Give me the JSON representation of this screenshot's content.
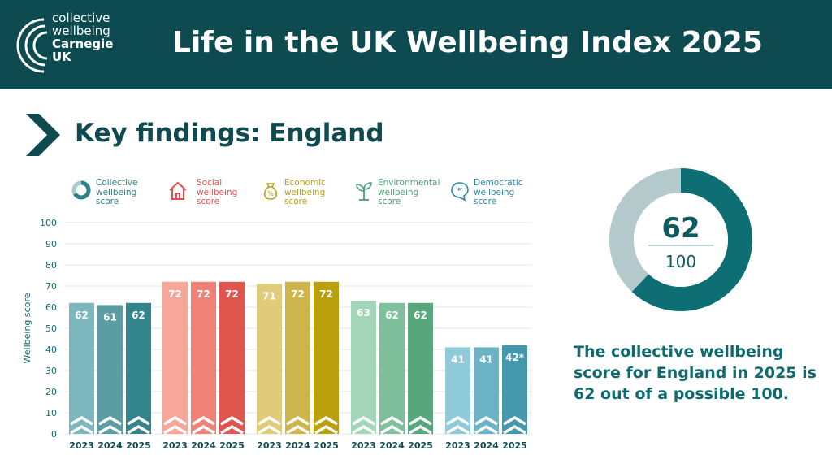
{
  "header": {
    "logo": {
      "line1": "collective",
      "line2": "wellbeing",
      "line3": "Carnegie",
      "line4": "UK"
    },
    "title": "Life in the UK Wellbeing Index 2025"
  },
  "section_title": "Key findings: England",
  "legend": [
    {
      "label": "Collective wellbeing score",
      "lines": [
        "Collective",
        "wellbeing",
        "score"
      ],
      "color": "#2f8089",
      "icon": "donut-icon"
    },
    {
      "label": "Social wellbeing score",
      "lines": [
        "Social",
        "wellbeing",
        "score"
      ],
      "color": "#e0504e",
      "icon": "house-icon"
    },
    {
      "label": "Economic wellbeing score",
      "lines": [
        "Economic",
        "wellbeing",
        "score"
      ],
      "color": "#b7a21a",
      "icon": "money-bag-icon"
    },
    {
      "label": "Environmental wellbeing score",
      "lines": [
        "Environmental",
        "wellbeing",
        "score"
      ],
      "color": "#4aa275",
      "icon": "sprout-icon"
    },
    {
      "label": "Democratic wellbeing score",
      "lines": [
        "Democratic",
        "wellbeing",
        "score"
      ],
      "color": "#2b86a4",
      "icon": "speech-bubble-icon"
    }
  ],
  "chart_data": {
    "type": "bar",
    "title": "",
    "ylabel": "Wellbeing score",
    "ylim": [
      0,
      100
    ],
    "yticks": [
      0,
      10,
      20,
      30,
      40,
      50,
      60,
      70,
      80,
      90,
      100
    ],
    "grid": true,
    "groups": [
      {
        "name": "Collective wellbeing score",
        "categories": [
          "2023",
          "2024",
          "2025"
        ],
        "values": [
          62,
          61,
          62
        ],
        "labels": [
          "62",
          "61",
          "62"
        ],
        "colors": [
          "#7db6bd",
          "#5c9da4",
          "#34848b"
        ]
      },
      {
        "name": "Social wellbeing score",
        "categories": [
          "2023",
          "2024",
          "2025"
        ],
        "values": [
          72,
          72,
          72
        ],
        "labels": [
          "72",
          "72",
          "72"
        ],
        "colors": [
          "#f7a79a",
          "#ef8277",
          "#e1554f"
        ]
      },
      {
        "name": "Economic wellbeing score",
        "categories": [
          "2023",
          "2024",
          "2025"
        ],
        "values": [
          71,
          72,
          72
        ],
        "labels": [
          "71",
          "72",
          "72"
        ],
        "colors": [
          "#e0cb7b",
          "#cdb44b",
          "#b9a00c"
        ]
      },
      {
        "name": "Environmental wellbeing score",
        "categories": [
          "2023",
          "2024",
          "2025"
        ],
        "values": [
          63,
          62,
          62
        ],
        "labels": [
          "63",
          "62",
          "62"
        ],
        "colors": [
          "#a3d6b8",
          "#7fc09c",
          "#58a67b"
        ]
      },
      {
        "name": "Democratic wellbeing score",
        "categories": [
          "2023",
          "2024",
          "2025"
        ],
        "values": [
          41,
          41,
          42
        ],
        "labels": [
          "41",
          "41",
          "42*"
        ],
        "colors": [
          "#8fcbd9",
          "#6bb3c5",
          "#4597ab"
        ]
      }
    ]
  },
  "donut": {
    "value": 62,
    "total": 100,
    "value_label": "62",
    "total_label": "100",
    "fill_color": "#0d6e73",
    "rest_color": "#b4c9cc"
  },
  "summary": "The collective wellbeing score for England in 2025 is 62 out of a possible 100."
}
